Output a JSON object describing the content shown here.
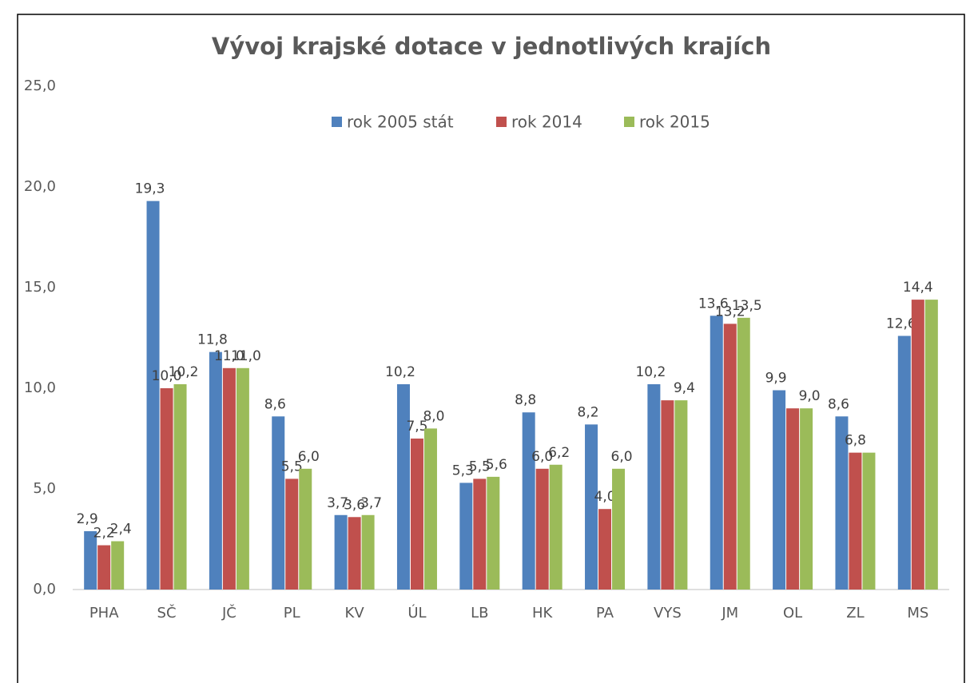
{
  "chart_data": {
    "type": "bar",
    "title": "Vývoj krajské dotace v jednotlivých krajích",
    "categories": [
      "PHA",
      "SČ",
      "JČ",
      "PL",
      "KV",
      "ÚL",
      "LB",
      "HK",
      "PA",
      "VYS",
      "JM",
      "OL",
      "ZL",
      "MS"
    ],
    "series": [
      {
        "name": "rok 2005 stát",
        "color": "#4f81bd",
        "values": [
          2.9,
          19.3,
          11.8,
          8.6,
          3.7,
          10.2,
          5.3,
          8.8,
          8.2,
          10.2,
          13.6,
          9.9,
          8.6,
          12.6
        ],
        "value_labels": [
          "2,9",
          "19,3",
          "11,8",
          "8,6",
          "3,7",
          "10,2",
          "5,3",
          "8,8",
          "8,2",
          "10,2",
          "13,6",
          "9,9",
          "8,6",
          "12,6"
        ]
      },
      {
        "name": "rok 2014",
        "color": "#c0504d",
        "values": [
          2.2,
          10.0,
          11.0,
          5.5,
          3.6,
          7.5,
          5.5,
          6.0,
          4.0,
          9.4,
          13.2,
          9.0,
          6.8,
          14.4
        ],
        "value_labels": [
          "2,2",
          "10,0",
          "11,0",
          "5,5",
          "3,6",
          "7,5",
          "5,5",
          "6,0",
          "4,0",
          null,
          "13,2",
          null,
          "6,8",
          "14,4"
        ]
      },
      {
        "name": "rok 2015",
        "color": "#9bbb59",
        "values": [
          2.4,
          10.2,
          11.0,
          6.0,
          3.7,
          8.0,
          5.6,
          6.2,
          6.0,
          9.4,
          13.5,
          9.0,
          6.8,
          14.4
        ],
        "value_labels": [
          "2,4",
          "10,2",
          "11,0",
          "6,0",
          "3,7",
          "8,0",
          "5,6",
          "6,2",
          "6,0",
          "9,4",
          "13,5",
          "9,0",
          null,
          null
        ]
      }
    ],
    "ylim": [
      0,
      25
    ],
    "yticks": [
      {
        "value": 0,
        "label": "0,0"
      },
      {
        "value": 5,
        "label": "5,0"
      },
      {
        "value": 10,
        "label": "10,0"
      },
      {
        "value": 15,
        "label": "15,0"
      },
      {
        "value": 20,
        "label": "20,0"
      },
      {
        "value": 25,
        "label": "25,0"
      }
    ],
    "legend": "top",
    "grid": false
  }
}
